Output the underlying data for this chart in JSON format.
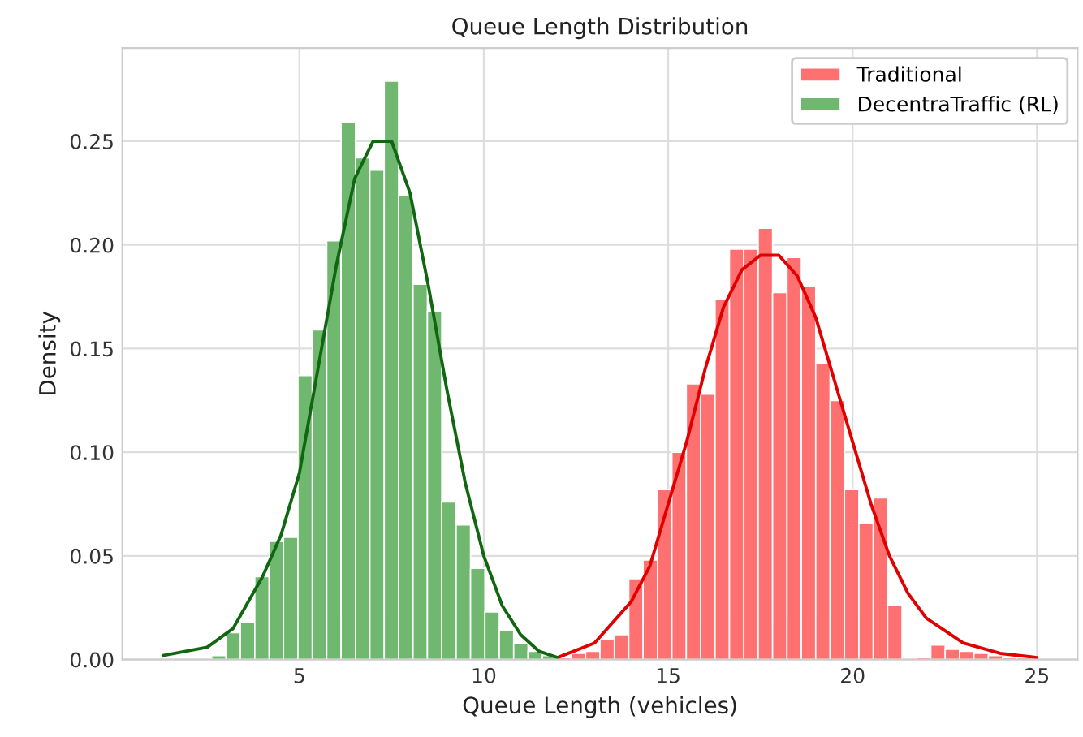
{
  "chart_data": {
    "type": "histogram",
    "title": "Queue Length Distribution",
    "xlabel": "Queue Length (vehicles)",
    "ylabel": "Density",
    "bins": [
      2.62,
      3.01,
      3.4,
      3.79,
      4.18,
      4.57,
      4.96,
      5.35,
      5.74,
      6.13,
      6.52,
      6.91,
      7.3,
      7.69,
      8.08,
      8.47,
      8.86,
      9.25,
      9.64,
      10.03,
      10.42,
      10.81,
      11.2,
      11.59,
      11.98,
      12.37,
      12.76,
      13.15,
      13.54,
      13.93,
      14.32,
      14.71,
      15.1,
      15.49,
      15.88,
      16.27,
      16.66,
      17.05,
      17.44,
      17.83,
      18.22,
      18.61,
      19.0,
      19.39,
      19.78,
      20.17,
      20.56,
      20.95,
      21.34,
      21.73,
      22.12,
      22.51,
      22.9,
      23.29,
      23.68,
      24.07,
      24.46,
      24.85
    ],
    "series": [
      {
        "name": "Traditional",
        "color": "#ff7070",
        "values": [
          0,
          0,
          0,
          0,
          0,
          0,
          0,
          0,
          0,
          0,
          0,
          0,
          0,
          0,
          0,
          0,
          0,
          0,
          0,
          0,
          0,
          0,
          0,
          0,
          0.001,
          0.003,
          0.004,
          0.01,
          0.012,
          0.039,
          0.048,
          0.082,
          0.1,
          0.133,
          0.128,
          0.174,
          0.198,
          0.198,
          0.208,
          0.177,
          0.194,
          0.18,
          0.143,
          0.125,
          0.082,
          0.066,
          0.078,
          0.026,
          0,
          0.001,
          0.007,
          0.005,
          0.004,
          0.003,
          0.002,
          0.001,
          0.001
        ]
      },
      {
        "name": "DecentraTraffic (RL)",
        "color": "#70b870",
        "values": [
          0.002,
          0.013,
          0.018,
          0.04,
          0.057,
          0.059,
          0.137,
          0.159,
          0.202,
          0.259,
          0.242,
          0.236,
          0.279,
          0.224,
          0.181,
          0.168,
          0.076,
          0.065,
          0.044,
          0.023,
          0.014,
          0.008,
          0.004,
          0.002,
          0,
          0,
          0,
          0,
          0,
          0,
          0,
          0,
          0,
          0,
          0,
          0,
          0,
          0,
          0,
          0,
          0,
          0,
          0,
          0,
          0,
          0,
          0,
          0,
          0,
          0,
          0,
          0,
          0,
          0,
          0,
          0,
          0
        ]
      },
      {
        "type": "line",
        "color": "#e00000",
        "x": [
          12,
          13,
          14,
          14.5,
          15,
          15.5,
          16,
          16.5,
          17,
          17.5,
          18,
          18.5,
          19,
          19.5,
          20,
          20.5,
          21,
          21.5,
          22,
          23,
          24,
          25
        ],
        "values": [
          0.001,
          0.008,
          0.028,
          0.045,
          0.075,
          0.105,
          0.14,
          0.17,
          0.188,
          0.195,
          0.195,
          0.185,
          0.165,
          0.135,
          0.105,
          0.075,
          0.05,
          0.032,
          0.02,
          0.008,
          0.003,
          0.001
        ]
      },
      {
        "type": "line",
        "color": "#116611",
        "x": [
          1.3,
          2.5,
          3.2,
          4,
          4.5,
          5,
          5.5,
          6,
          6.5,
          7,
          7.5,
          8,
          8.5,
          9,
          9.5,
          10,
          10.5,
          11,
          11.5,
          12
        ],
        "values": [
          0.002,
          0.006,
          0.015,
          0.04,
          0.06,
          0.09,
          0.14,
          0.19,
          0.232,
          0.25,
          0.25,
          0.225,
          0.18,
          0.13,
          0.085,
          0.05,
          0.026,
          0.012,
          0.004,
          0.001
        ]
      }
    ],
    "xlim": [
      0.2,
      26.1
    ],
    "ylim": [
      0,
      0.295
    ],
    "xticks": [
      5,
      10,
      15,
      20,
      25
    ],
    "yticks": [
      {
        "value": 0,
        "label": "0.00"
      },
      {
        "value": 0.05,
        "label": "0.05"
      },
      {
        "value": 0.1,
        "label": "0.10"
      },
      {
        "value": 0.15,
        "label": "0.15"
      },
      {
        "value": 0.2,
        "label": "0.20"
      },
      {
        "value": 0.25,
        "label": "0.25"
      }
    ],
    "grid": true,
    "legend": "top right"
  }
}
